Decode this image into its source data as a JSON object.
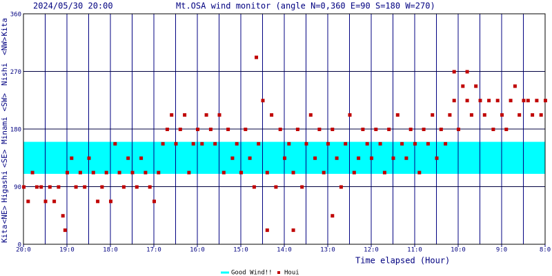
{
  "chart_data": {
    "type": "scatter",
    "datetime": "2024/05/30 20:00",
    "title": "Mt.OSA wind monitor (angle N=0,360 E=90 S=180 W=270)",
    "x_label": "Time elapsed (Hour)",
    "y_label_parts": [
      "Kita",
      "<NE>",
      "Higashi",
      "<SE>",
      "Minami",
      "<SW>",
      "Nishi",
      "<NW>",
      "Kita"
    ],
    "xlim": [
      20,
      8
    ],
    "xticks": [
      {
        "value": 20,
        "label": "20:0"
      },
      {
        "value": 19,
        "label": "19:0"
      },
      {
        "value": 18,
        "label": "18:0"
      },
      {
        "value": 17,
        "label": "17:0"
      },
      {
        "value": 16,
        "label": "16:0"
      },
      {
        "value": 15,
        "label": "15:0"
      },
      {
        "value": 14,
        "label": "14:0"
      },
      {
        "value": 13,
        "label": "13:0"
      },
      {
        "value": 12,
        "label": "12:0"
      },
      {
        "value": 11,
        "label": "11:0"
      },
      {
        "value": 10,
        "label": "10:0"
      },
      {
        "value": 9,
        "label": "9:0"
      },
      {
        "value": 8,
        "label": "8:0"
      }
    ],
    "xminor": [
      19.5,
      18.5,
      17.5,
      16.5,
      15.5,
      14.5,
      13.5,
      12.5,
      11.5,
      10.5,
      9.5,
      8.5
    ],
    "ylim": [
      0,
      360
    ],
    "yticks": [
      0,
      90,
      180,
      270,
      360
    ],
    "grid": true,
    "bands": [
      {
        "name": "Good Wind!!",
        "color": "#00ffff",
        "range": [
          110,
          160
        ]
      }
    ],
    "series": [
      {
        "name": "Houi",
        "color": "#c00000",
        "x": [
          20.0,
          19.9,
          19.8,
          19.7,
          19.6,
          19.5,
          19.4,
          19.3,
          19.2,
          19.1,
          19.0,
          18.9,
          18.8,
          18.7,
          18.6,
          18.5,
          18.4,
          18.3,
          18.2,
          18.1,
          18.0,
          17.9,
          17.8,
          17.7,
          17.6,
          17.5,
          17.4,
          17.3,
          17.2,
          17.1,
          17.0,
          16.9,
          16.8,
          16.7,
          16.6,
          16.5,
          16.4,
          16.3,
          16.2,
          16.1,
          16.0,
          15.9,
          15.8,
          15.7,
          15.6,
          15.5,
          15.4,
          15.3,
          15.2,
          15.1,
          15.0,
          14.9,
          14.8,
          14.7,
          14.6,
          14.5,
          14.4,
          14.3,
          14.2,
          14.1,
          14.0,
          13.9,
          13.8,
          13.7,
          13.6,
          13.5,
          13.4,
          13.3,
          13.2,
          13.1,
          13.0,
          12.9,
          12.8,
          12.7,
          12.6,
          12.5,
          12.4,
          12.3,
          12.2,
          12.1,
          12.0,
          11.9,
          11.8,
          11.7,
          11.6,
          11.5,
          11.4,
          11.3,
          11.2,
          11.1,
          11.0,
          10.9,
          10.8,
          10.7,
          10.6,
          10.5,
          10.4,
          10.3,
          10.2,
          10.1,
          10.0,
          9.9,
          9.8,
          9.7,
          9.6,
          9.5,
          9.4,
          9.3,
          9.2,
          9.1,
          9.0,
          8.9,
          8.8,
          8.7,
          8.6,
          8.5,
          8.4,
          8.3,
          8.2,
          8.1,
          8.0,
          19.05,
          14.65,
          14.4,
          13.8,
          12.9,
          10.1,
          9.8
        ],
        "values": [
          90,
          67.5,
          112.5,
          90,
          90,
          67.5,
          90,
          67.5,
          90,
          45,
          112.5,
          135,
          90,
          112.5,
          90,
          135,
          112.5,
          67.5,
          90,
          112.5,
          67.5,
          157.5,
          112.5,
          90,
          135,
          112.5,
          90,
          135,
          112.5,
          90,
          67.5,
          112.5,
          157.5,
          180,
          202.5,
          157.5,
          180,
          202.5,
          112.5,
          157.5,
          180,
          157.5,
          202.5,
          180,
          157.5,
          202.5,
          112.5,
          180,
          135,
          157.5,
          112.5,
          180,
          135,
          90,
          157.5,
          225,
          112.5,
          202.5,
          90,
          180,
          135,
          157.5,
          112.5,
          180,
          90,
          157.5,
          202.5,
          135,
          180,
          112.5,
          157.5,
          180,
          135,
          90,
          157.5,
          202.5,
          112.5,
          135,
          180,
          157.5,
          135,
          180,
          157.5,
          112.5,
          180,
          135,
          202.5,
          157.5,
          135,
          180,
          157.5,
          112.5,
          180,
          157.5,
          202.5,
          135,
          180,
          157.5,
          202.5,
          225,
          180,
          247.5,
          225,
          202.5,
          247.5,
          225,
          202.5,
          225,
          180,
          225,
          202.5,
          180,
          225,
          247.5,
          202.5,
          225,
          225,
          202.5,
          225,
          202.5,
          225,
          22.5,
          292.5,
          22.5,
          22.5,
          45,
          270,
          270
        ]
      }
    ]
  }
}
